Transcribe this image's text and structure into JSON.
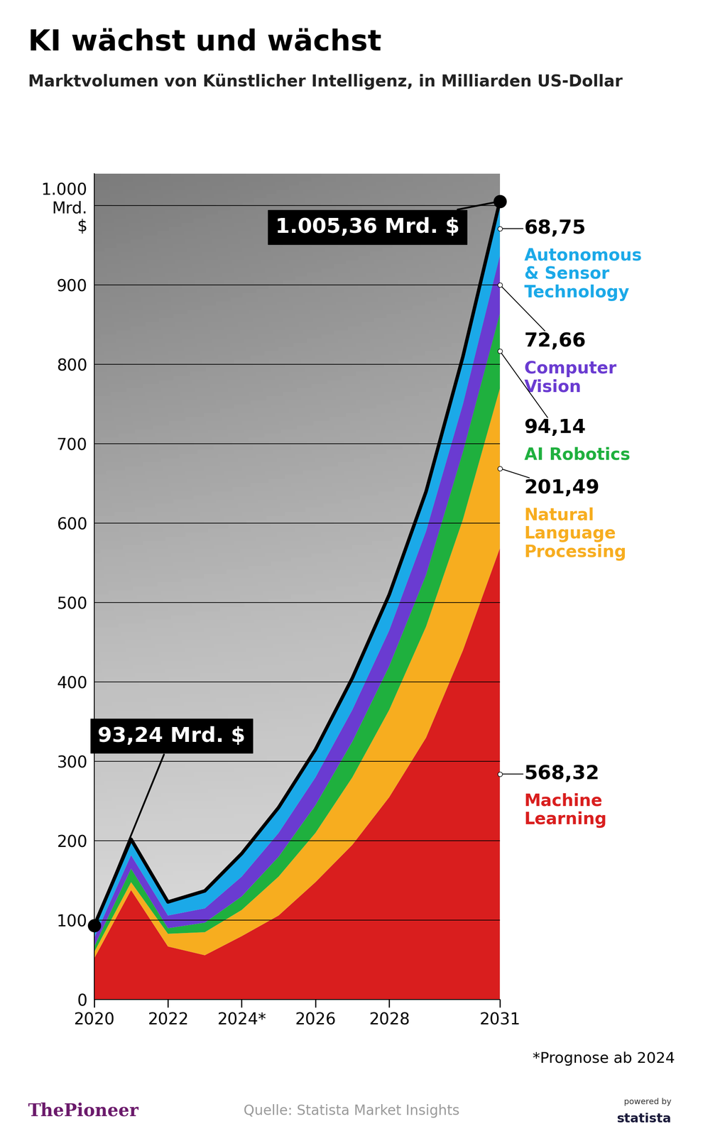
{
  "chart_data": {
    "type": "area",
    "stacked": true,
    "title": "KI wächst und wächst",
    "subtitle": "Marktvolumen von Künstlicher Intelligenz, in Milliarden US-Dollar",
    "x": [
      2020,
      2021,
      2022,
      2023,
      2024,
      2025,
      2026,
      2027,
      2028,
      2029,
      2030,
      2031
    ],
    "series": [
      {
        "name": "Machine Learning",
        "color": "#d91e1e",
        "values": [
          52,
          138,
          67,
          56,
          80,
          106,
          148,
          195,
          255,
          330,
          440,
          568.32
        ],
        "value_labels": [
          null,
          null,
          null,
          null,
          null,
          null,
          null,
          null,
          null,
          null,
          null,
          "568,32"
        ]
      },
      {
        "name": "Natural Language Processing",
        "color": "#f7ad1f",
        "values": [
          8,
          10,
          16,
          29,
          33,
          49,
          62,
          85,
          110,
          140,
          165,
          201.49
        ],
        "value_labels": [
          null,
          null,
          null,
          null,
          null,
          null,
          null,
          null,
          null,
          null,
          null,
          "201,49"
        ]
      },
      {
        "name": "AI Robotics",
        "color": "#1fb03e",
        "values": [
          7,
          17,
          7,
          12,
          17,
          25,
          35,
          45,
          55,
          65,
          85,
          94.14
        ],
        "value_labels": [
          null,
          null,
          null,
          null,
          null,
          null,
          null,
          null,
          null,
          null,
          null,
          "94,14"
        ]
      },
      {
        "name": "Computer Vision",
        "color": "#6a3bd1",
        "values": [
          11,
          17,
          16,
          18,
          25,
          30,
          35,
          40,
          45,
          55,
          60,
          72.66
        ],
        "value_labels": [
          null,
          null,
          null,
          null,
          null,
          null,
          null,
          null,
          null,
          null,
          null,
          "72,66"
        ]
      },
      {
        "name": "Autonomous & Sensor Technology",
        "color": "#1ba9e8",
        "values": [
          15.24,
          20,
          17,
          22,
          29,
          32,
          35,
          40,
          45,
          50,
          60,
          68.75
        ],
        "value_labels": [
          null,
          null,
          null,
          null,
          null,
          null,
          null,
          null,
          null,
          null,
          null,
          "68,75"
        ]
      }
    ],
    "annotations": [
      {
        "x": 2020,
        "value": 93.24,
        "text": "93,24 Mrd. $"
      },
      {
        "x": 2031,
        "value": 1005.36,
        "text": "1.005,36 Mrd. $"
      }
    ],
    "xlim": [
      2020,
      2031
    ],
    "xticks": [
      2020,
      2022,
      {
        "value": 2024,
        "label": "2024*"
      },
      2026,
      2028,
      2031
    ],
    "ylim": [
      0,
      1040
    ],
    "yticks": [
      0,
      100,
      200,
      300,
      400,
      500,
      600,
      700,
      800,
      900,
      {
        "value": 1000,
        "label": "1.000\nMrd.\n$"
      }
    ],
    "grid": true,
    "footnote": "*Prognose ab 2024",
    "source": "Quelle: Statista Market Insights",
    "publisher": "ThePioneer",
    "powered_by": [
      "powered by",
      "statista"
    ]
  }
}
